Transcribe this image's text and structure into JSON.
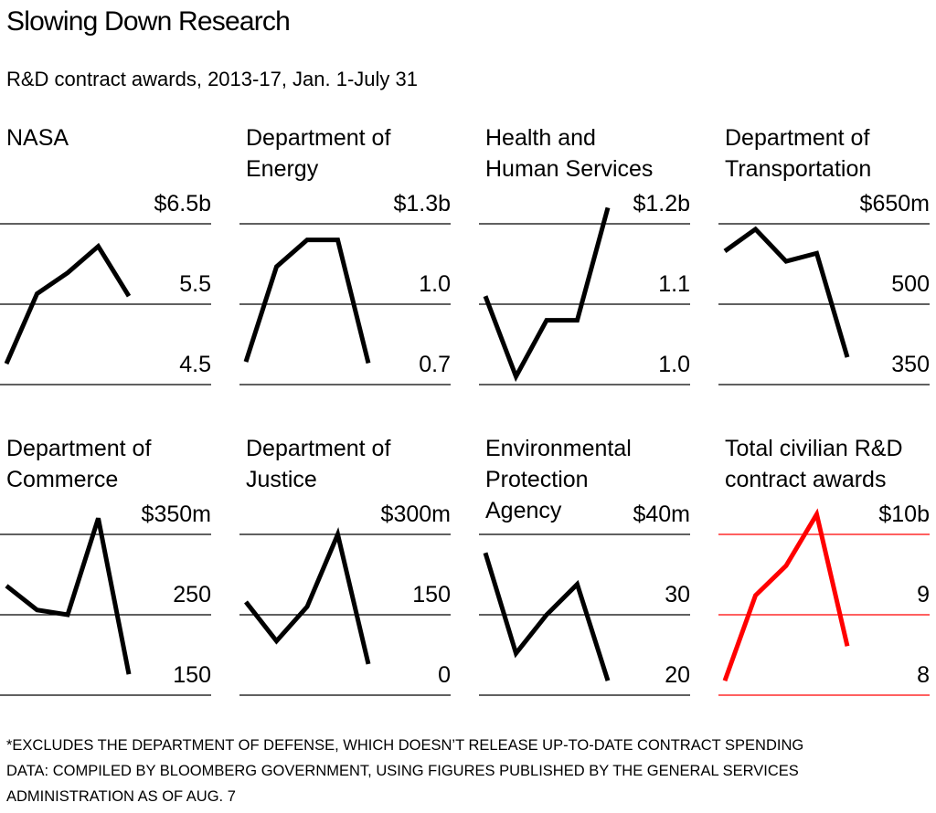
{
  "title": "Slowing Down Research",
  "subtitle": "R&D contract awards, 2013-17, Jan. 1-July 31",
  "footnote": [
    "*EXCLUDES THE DEPARTMENT OF DEFENSE, WHICH DOESN’T RELEASE UP-TO-DATE CONTRACT SPENDING",
    "DATA: COMPILED BY BLOOMBERG GOVERNMENT, USING FIGURES PUBLISHED BY THE GENERAL SERVICES",
    "ADMINISTRATION AS OF AUG. 7"
  ],
  "chart_data": [
    {
      "type": "line",
      "title": [
        "NASA"
      ],
      "color": "#000000",
      "values": [
        4.76,
        5.63,
        5.89,
        6.22,
        5.6
      ],
      "ylim": [
        4.5,
        6.5
      ],
      "yticks": [
        4.5,
        5.5,
        {
          "value": 6.5,
          "label": "$6.5b"
        }
      ],
      "grid": true
    },
    {
      "type": "line",
      "title": [
        "Department of",
        "Energy"
      ],
      "color": "#000000",
      "values": [
        0.785,
        1.14,
        1.24,
        1.24,
        0.78
      ],
      "ylim": [
        0.7,
        1.3
      ],
      "yticks": [
        0.7,
        {
          "value": 1.0,
          "label": "1.0"
        },
        {
          "value": 1.3,
          "label": "$1.3b"
        }
      ],
      "grid": true
    },
    {
      "type": "line",
      "title": [
        "Health and",
        "Human Services"
      ],
      "color": "#000000",
      "values": [
        1.11,
        1.01,
        1.08,
        1.08,
        1.22
      ],
      "ylim": [
        1.0,
        1.2
      ],
      "yticks": [
        {
          "value": 1.0,
          "label": "1.0"
        },
        1.1,
        {
          "value": 1.2,
          "label": "$1.2b"
        }
      ],
      "grid": true
    },
    {
      "type": "line",
      "title": [
        "Department of",
        "Transportation"
      ],
      "color": "#000000",
      "values": [
        599,
        640,
        580,
        595,
        401
      ],
      "ylim": [
        350,
        650
      ],
      "yticks": [
        350,
        500,
        {
          "value": 650,
          "label": "$650m"
        }
      ],
      "grid": true
    },
    {
      "type": "line",
      "title": [
        "Department of",
        "Commerce"
      ],
      "color": "#000000",
      "values": [
        286,
        256,
        250,
        370,
        176
      ],
      "ylim": [
        150,
        350
      ],
      "yticks": [
        150,
        250,
        {
          "value": 350,
          "label": "$350m"
        }
      ],
      "grid": true
    },
    {
      "type": "line",
      "title": [
        "Department of",
        "Justice"
      ],
      "color": "#000000",
      "values": [
        174,
        101,
        165,
        300,
        58
      ],
      "ylim": [
        0,
        300
      ],
      "yticks": [
        0,
        150,
        {
          "value": 300,
          "label": "$300m"
        }
      ],
      "grid": true
    },
    {
      "type": "line",
      "title": [
        "Environmental",
        "Protection",
        "Agency"
      ],
      "color": "#000000",
      "values": [
        37.7,
        25.2,
        30,
        33.8,
        21.8
      ],
      "ylim": [
        20,
        40
      ],
      "yticks": [
        20,
        30,
        {
          "value": 40,
          "label": "$40m"
        }
      ],
      "grid": true
    },
    {
      "type": "line",
      "title": [
        "Total civilian R&D",
        "contract awards"
      ],
      "color": "#ff0000",
      "values": [
        8.18,
        9.24,
        9.61,
        10.25,
        8.61
      ],
      "ylim": [
        8,
        10
      ],
      "yticks": [
        8,
        9,
        {
          "value": 10,
          "label": "$10b"
        }
      ],
      "grid": true
    }
  ]
}
